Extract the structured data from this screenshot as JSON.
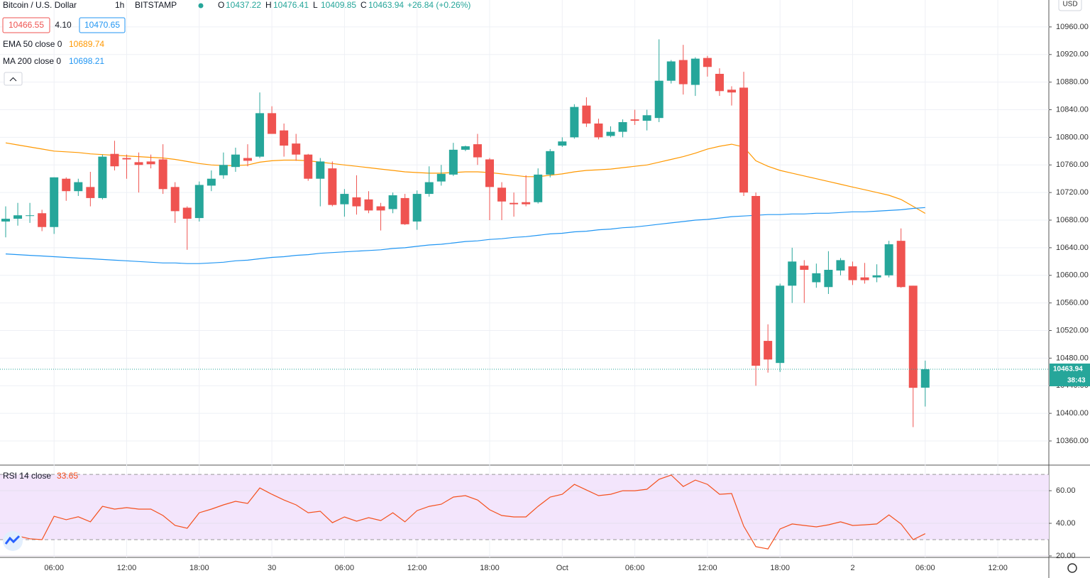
{
  "chart_data": [
    {
      "type": "candlestick",
      "title": "Bitcoin / U.S. Dollar",
      "interval": "1h",
      "exchange": "BITSTAMP",
      "ohlc_labels": [
        "O",
        "H",
        "L",
        "C"
      ],
      "change": "+26.84 (+0.26%)",
      "bid": 10466.55,
      "spread": "4.10",
      "ask": 10470.65,
      "currency": "USD",
      "countdown": "38:43",
      "up_color": "#26a69a",
      "down_color": "#ef5350",
      "categories": [
        null,
        null,
        null,
        null,
        "06:00",
        null,
        null,
        null,
        null,
        null,
        "12:00",
        null,
        null,
        null,
        null,
        null,
        "18:00",
        null,
        null,
        null,
        null,
        null,
        "30",
        null,
        null,
        null,
        null,
        null,
        "06:00",
        null,
        null,
        null,
        null,
        null,
        "12:00",
        null,
        null,
        null,
        null,
        null,
        "18:00",
        null,
        null,
        null,
        null,
        null,
        "Oct",
        null,
        null,
        null,
        null,
        null,
        "06:00",
        null,
        null,
        null,
        null,
        null,
        "12:00",
        null,
        null,
        null,
        null,
        null,
        "18:00",
        null,
        null,
        null,
        null,
        null,
        "2",
        null,
        null,
        null,
        null,
        null,
        "06:00",
        null,
        null,
        null,
        null,
        null,
        "12:00",
        null,
        null,
        null,
        null
      ],
      "open": [
        10678,
        10682,
        10686,
        10690,
        10670,
        10740,
        10722,
        10728,
        10712,
        10776,
        10770,
        10764,
        10765,
        10768,
        10728,
        10698,
        10683,
        10730,
        10745,
        10757,
        10770,
        10772,
        10835,
        10810,
        10791,
        10775,
        10740,
        10755,
        10703,
        10713,
        10710,
        10700,
        10696,
        10712,
        10678,
        10718,
        10736,
        10746,
        10782,
        10790,
        10768,
        10727,
        10705,
        10706,
        10706,
        10746,
        10788,
        10800,
        10846,
        10820,
        10802,
        10808,
        10826,
        10824,
        10828,
        10882,
        10912,
        10876,
        10915,
        10892,
        10869,
        10872,
        10715,
        10505,
        10473,
        10585,
        10614,
        10590,
        10583,
        10607,
        10613,
        10597,
        10597,
        10600,
        10650,
        10585,
        10437.22,
        null,
        null,
        null,
        null,
        null,
        null,
        null,
        null,
        null,
        null
      ],
      "high": [
        10700,
        10705,
        10705,
        10695,
        10742,
        10742,
        10740,
        10750,
        10775,
        10795,
        10775,
        10778,
        10775,
        10790,
        10735,
        10700,
        10736,
        10752,
        10778,
        10785,
        10790,
        10865,
        10845,
        10820,
        10805,
        10776,
        10770,
        10765,
        10725,
        10745,
        10722,
        10705,
        10720,
        10718,
        10723,
        10758,
        10760,
        10792,
        10788,
        10805,
        10770,
        10735,
        10720,
        10745,
        10755,
        10783,
        10800,
        10848,
        10858,
        10827,
        10816,
        10826,
        10840,
        10840,
        10942,
        10912,
        10934,
        10916,
        10918,
        10900,
        10874,
        10895,
        10720,
        10529,
        10588,
        10640,
        10622,
        10617,
        10635,
        10625,
        10620,
        10618,
        10616,
        10650,
        10668,
        10585,
        10476.41,
        null,
        null,
        null,
        null,
        null,
        null,
        null,
        null,
        null,
        null
      ],
      "low": [
        10655,
        10672,
        10676,
        10664,
        10660,
        10708,
        10715,
        10700,
        10710,
        10752,
        10740,
        10720,
        10755,
        10718,
        10676,
        10637,
        10678,
        10722,
        10740,
        10750,
        10758,
        10770,
        10805,
        10772,
        10766,
        10737,
        10700,
        10700,
        10685,
        10688,
        10690,
        10665,
        10690,
        10673,
        10666,
        10714,
        10730,
        10744,
        10780,
        10760,
        10680,
        10680,
        10685,
        10700,
        10704,
        10742,
        10786,
        10798,
        10815,
        10797,
        10800,
        10800,
        10818,
        10810,
        10822,
        10878,
        10862,
        10860,
        10888,
        10860,
        10846,
        10715,
        10440,
        10459,
        10460,
        10560,
        10560,
        10582,
        10573,
        10600,
        10586,
        10588,
        10590,
        10597,
        10582,
        10380,
        10409.85,
        null,
        null,
        null,
        null,
        null,
        null,
        null,
        null,
        null,
        null
      ],
      "close": [
        10682,
        10687,
        10687,
        10670,
        10742,
        10722,
        10735,
        10712,
        10772,
        10758,
        10768,
        10760,
        10761,
        10725,
        10693,
        10682,
        10731,
        10740,
        10760,
        10775,
        10766,
        10835,
        10805,
        10788,
        10775,
        10740,
        10765,
        10702,
        10718,
        10700,
        10694,
        10694,
        10716,
        10674,
        10718,
        10735,
        10747,
        10782,
        10787,
        10771,
        10728,
        10707,
        10703,
        10703,
        10746,
        10780,
        10794,
        10844,
        10820,
        10800,
        10808,
        10822,
        10824,
        10832,
        10882,
        10910,
        10877,
        10914,
        10902,
        10867,
        10865,
        10720,
        10469,
        10478,
        10585,
        10620,
        10608,
        10603,
        10608,
        10622,
        10593,
        10593,
        10600,
        10645,
        10583,
        10437,
        10463.94,
        null,
        null,
        null,
        null,
        null,
        null,
        null,
        null,
        null,
        null
      ],
      "overlays": [
        {
          "name": "EMA 50 close 0",
          "color": "#ff9800",
          "values": [
            10792,
            10789,
            10786,
            10783,
            10780,
            10779,
            10778,
            10776,
            10775,
            10774,
            10773,
            10772,
            10771,
            10770,
            10768,
            10765,
            10762,
            10760,
            10759,
            10759,
            10760,
            10764,
            10766,
            10767,
            10767,
            10766,
            10764,
            10762,
            10760,
            10758,
            10756,
            10754,
            10752,
            10750,
            10749,
            10748,
            10748,
            10749,
            10750,
            10750,
            10749,
            10747,
            10745,
            10743,
            10743,
            10745,
            10747,
            10750,
            10752,
            10753,
            10754,
            10756,
            10758,
            10760,
            10764,
            10768,
            10772,
            10777,
            10783,
            10787,
            10790,
            10786,
            10766,
            10758,
            10752,
            10748,
            10744,
            10740,
            10736,
            10732,
            10728,
            10724,
            10720,
            10716,
            10710,
            10700,
            10689.74,
            null,
            null,
            null,
            null,
            null,
            null,
            null,
            null,
            null,
            null
          ]
        },
        {
          "name": "MA 200 close 0",
          "color": "#2196f3",
          "values": [
            10631,
            10630,
            10629,
            10628,
            10627,
            10626,
            10625,
            10624,
            10623,
            10622,
            10621,
            10620,
            10619,
            10618,
            10618,
            10617,
            10617,
            10618,
            10619,
            10621,
            10622,
            10624,
            10626,
            10627,
            10629,
            10630,
            10632,
            10633,
            10634,
            10635,
            10636,
            10637,
            10639,
            10640,
            10642,
            10644,
            10645,
            10647,
            10649,
            10650,
            10652,
            10653,
            10655,
            10656,
            10658,
            10660,
            10661,
            10663,
            10664,
            10666,
            10667,
            10669,
            10670,
            10672,
            10674,
            10676,
            10678,
            10680,
            10681,
            10683,
            10685,
            10686,
            10687,
            10688,
            10688,
            10689,
            10689,
            10690,
            10690,
            10691,
            10692,
            10692,
            10693,
            10694,
            10695,
            10697,
            10698.21,
            null,
            null,
            null,
            null,
            null,
            null,
            null,
            null,
            null,
            null
          ]
        }
      ],
      "ylim": [
        10325,
        10999
      ],
      "yticks": [
        {
          "value": 10360,
          "label": "10360.00"
        },
        {
          "value": 10400,
          "label": "10400.00"
        },
        {
          "value": 10440,
          "label": "10440.00"
        },
        {
          "value": 10480,
          "label": "10480.00"
        },
        {
          "value": 10520,
          "label": "10520.00"
        },
        {
          "value": 10560,
          "label": "10560.00"
        },
        {
          "value": 10600,
          "label": "10600.00"
        },
        {
          "value": 10640,
          "label": "10640.00"
        },
        {
          "value": 10680,
          "label": "10680.00"
        },
        {
          "value": 10720,
          "label": "10720.00"
        },
        {
          "value": 10760,
          "label": "10760.00"
        },
        {
          "value": 10800,
          "label": "10800.00"
        },
        {
          "value": 10840,
          "label": "10840.00"
        },
        {
          "value": 10880,
          "label": "10880.00"
        },
        {
          "value": 10920,
          "label": "10920.00"
        },
        {
          "value": 10960,
          "label": "10960.00"
        }
      ],
      "grid": true
    },
    {
      "type": "line",
      "name": "RSI 14 close",
      "color": "#f4511e",
      "band_color": "#f3e5fc",
      "values": [
        32.6,
        32.2,
        30.5,
        30,
        44.3,
        42.2,
        44,
        40.9,
        50.4,
        48.7,
        49.6,
        48.7,
        48.7,
        44.8,
        38.7,
        37,
        46.5,
        48.7,
        51.3,
        53.5,
        52.2,
        61.7,
        57.8,
        54.3,
        51.3,
        46.5,
        47.4,
        40.4,
        43.9,
        41.3,
        43.5,
        41.7,
        46.5,
        40.9,
        47.8,
        50.4,
        51.7,
        56.1,
        57,
        54.3,
        48.3,
        44.8,
        43.9,
        43.9,
        50.4,
        56.1,
        57.8,
        63.9,
        60.4,
        57,
        57.8,
        60,
        60,
        60.9,
        67,
        69.6,
        62.6,
        66.5,
        63.9,
        57.8,
        58.3,
        38.3,
        25.7,
        24.3,
        36.5,
        39.6,
        38.7,
        37.8,
        39.1,
        40.9,
        38.7,
        39.1,
        39.6,
        45.2,
        39.6,
        30,
        33.65,
        null,
        null,
        null,
        null,
        null,
        null,
        null,
        null,
        null,
        null
      ],
      "levels": [
        30,
        70
      ],
      "ylim": [
        19.1,
        75.7
      ],
      "yticks": [
        {
          "value": 20,
          "label": "20.00"
        },
        {
          "value": 40,
          "label": "40.00"
        },
        {
          "value": 60,
          "label": "60.00"
        }
      ],
      "grid": true
    }
  ]
}
